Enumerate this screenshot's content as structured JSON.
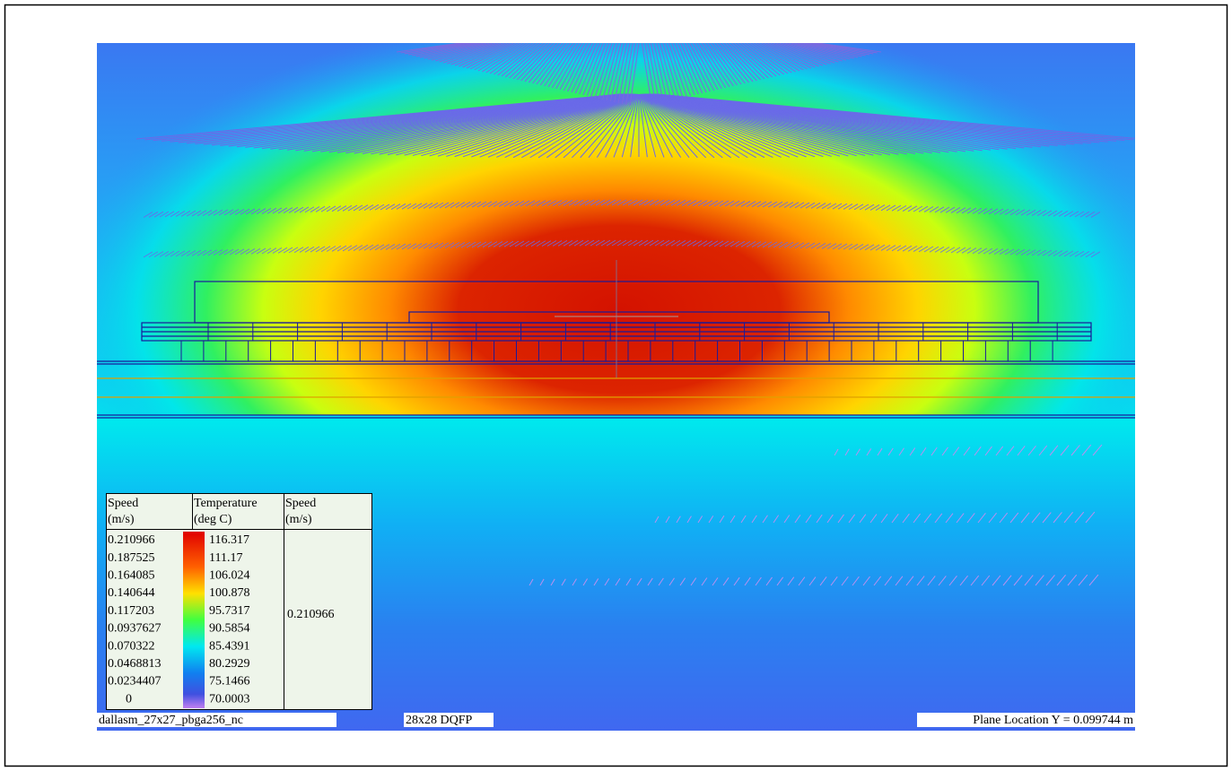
{
  "legend": {
    "columns": [
      {
        "title": "Speed",
        "unit": "(m/s)"
      },
      {
        "title": "Temperature",
        "unit": "(deg C)"
      },
      {
        "title": "Speed",
        "unit": "(m/s)"
      }
    ],
    "speed_values": [
      "0.210966",
      "0.187525",
      "0.164085",
      "0.140644",
      "0.117203",
      "0.0937627",
      "0.070322",
      "0.0468813",
      "0.0234407",
      "0"
    ],
    "temperature_values": [
      "116.317",
      "111.17",
      "106.024",
      "100.878",
      "95.7317",
      "90.5854",
      "85.4391",
      "80.2929",
      "75.1466",
      "70.0003"
    ],
    "max_speed": "0.210966"
  },
  "footer": {
    "model_name": "dallasm_27x27_pbga256_nc",
    "package_name": "28x28 DQFP",
    "plane_location": "Plane Location Y = 0.099744 m"
  }
}
